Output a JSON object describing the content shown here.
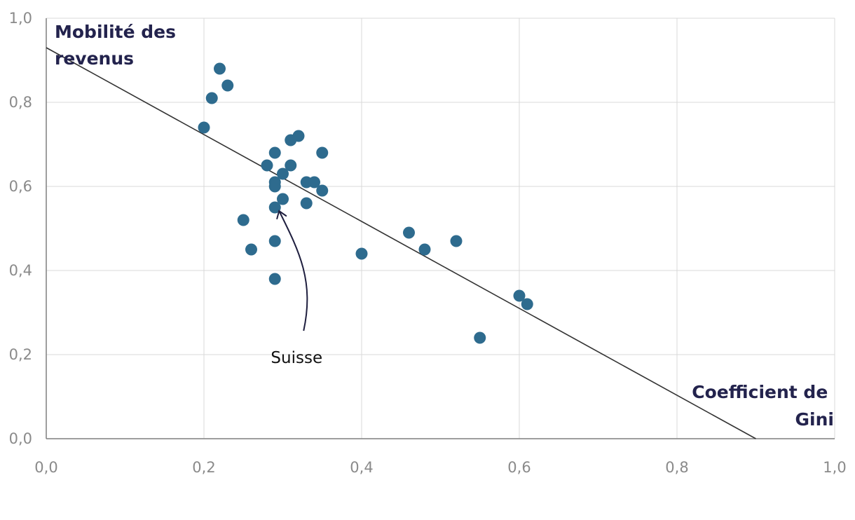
{
  "chart_data": {
    "type": "scatter",
    "title": "",
    "ylabel_lines": [
      "Mobilité des",
      "revenus"
    ],
    "xlabel_lines": [
      "Coefficient de",
      "Gini"
    ],
    "xlim": [
      0,
      1
    ],
    "ylim": [
      0,
      1
    ],
    "x_ticks": [
      0,
      0.2,
      0.4,
      0.6,
      0.8,
      1.0
    ],
    "y_ticks": [
      0,
      0.2,
      0.4,
      0.6,
      0.8,
      1.0
    ],
    "x_tick_labels": [
      "0,0",
      "0,2",
      "0,4",
      "0,6",
      "0,8",
      "1,0"
    ],
    "y_tick_labels": [
      "0,0",
      "0,2",
      "0,4",
      "0,6",
      "0,8",
      "1,0"
    ],
    "grid": true,
    "colors": {
      "points": "#2e6b8e",
      "trend": "#333333",
      "grid": "#d9d9d9",
      "axis": "#7f7f7f",
      "annotation": "#1f1f3f"
    },
    "points": [
      {
        "x": 0.22,
        "y": 0.88
      },
      {
        "x": 0.23,
        "y": 0.84
      },
      {
        "x": 0.21,
        "y": 0.81
      },
      {
        "x": 0.2,
        "y": 0.74
      },
      {
        "x": 0.32,
        "y": 0.72
      },
      {
        "x": 0.31,
        "y": 0.71
      },
      {
        "x": 0.29,
        "y": 0.68
      },
      {
        "x": 0.35,
        "y": 0.68
      },
      {
        "x": 0.28,
        "y": 0.65
      },
      {
        "x": 0.31,
        "y": 0.65
      },
      {
        "x": 0.3,
        "y": 0.63
      },
      {
        "x": 0.29,
        "y": 0.61
      },
      {
        "x": 0.29,
        "y": 0.6
      },
      {
        "x": 0.33,
        "y": 0.61
      },
      {
        "x": 0.34,
        "y": 0.61
      },
      {
        "x": 0.35,
        "y": 0.59
      },
      {
        "x": 0.3,
        "y": 0.57
      },
      {
        "x": 0.33,
        "y": 0.56
      },
      {
        "x": 0.29,
        "y": 0.55
      },
      {
        "x": 0.25,
        "y": 0.52
      },
      {
        "x": 0.46,
        "y": 0.49
      },
      {
        "x": 0.29,
        "y": 0.47
      },
      {
        "x": 0.52,
        "y": 0.47
      },
      {
        "x": 0.26,
        "y": 0.45
      },
      {
        "x": 0.48,
        "y": 0.45
      },
      {
        "x": 0.4,
        "y": 0.44
      },
      {
        "x": 0.29,
        "y": 0.38
      },
      {
        "x": 0.6,
        "y": 0.34
      },
      {
        "x": 0.61,
        "y": 0.32
      },
      {
        "x": 0.55,
        "y": 0.24
      }
    ],
    "trendline": {
      "x": [
        0,
        0.9
      ],
      "y": [
        0.93,
        0
      ]
    },
    "annotations": [
      {
        "text": "Suisse",
        "x": 0.29,
        "y": 0.55
      }
    ]
  }
}
